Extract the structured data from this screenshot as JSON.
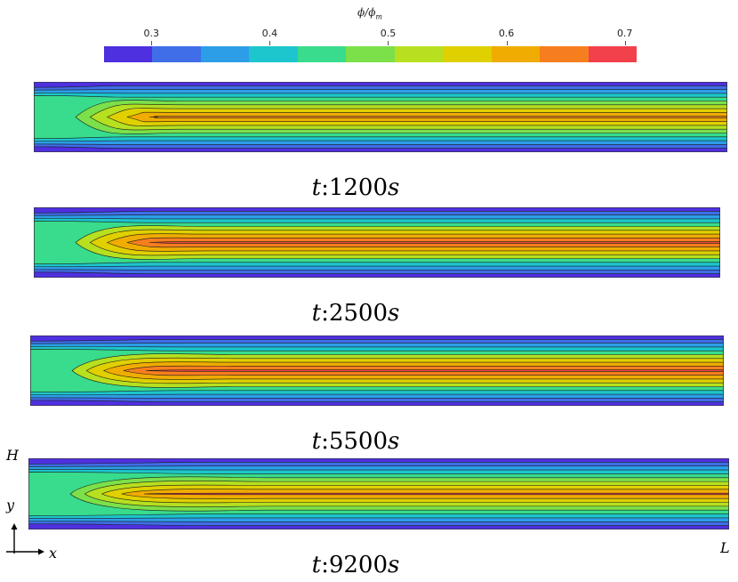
{
  "colorbar": {
    "title_main": "ϕ/ϕ",
    "title_sub": "m",
    "ticks": [
      {
        "label": "0.3",
        "value": 0.3
      },
      {
        "label": "0.4",
        "value": 0.4
      },
      {
        "label": "0.5",
        "value": 0.5
      },
      {
        "label": "0.6",
        "value": 0.6
      },
      {
        "label": "0.7",
        "value": 0.7
      }
    ],
    "range": [
      0.26,
      0.71
    ],
    "colors": [
      "#4f30e0",
      "#3f6ee8",
      "#2c9ee8",
      "#1cc6cc",
      "#38dc8c",
      "#7ce04a",
      "#b6e020",
      "#e0d000",
      "#f0ac00",
      "#f77e1e",
      "#f2414b"
    ]
  },
  "panels": [
    {
      "t_prefix": "t",
      "t_value": ":1200",
      "t_unit": "s",
      "core_value": 0.66,
      "edge_value": 0.29,
      "inlet_value": 0.47,
      "development": 0.1
    },
    {
      "t_prefix": "t",
      "t_value": ":2500",
      "t_unit": "s",
      "core_value": 0.7,
      "edge_value": 0.27,
      "inlet_value": 0.47,
      "development": 0.35
    },
    {
      "t_prefix": "t",
      "t_value": ":5500",
      "t_unit": "s",
      "core_value": 0.7,
      "edge_value": 0.27,
      "inlet_value": 0.47,
      "development": 0.65
    },
    {
      "t_prefix": "t",
      "t_value": ":9200",
      "t_unit": "s",
      "core_value": 0.67,
      "edge_value": 0.27,
      "inlet_value": 0.47,
      "development": 0.95
    }
  ],
  "axes": {
    "height_label": "H",
    "length_label": "L",
    "y_label": "y",
    "x_label": "x"
  }
}
